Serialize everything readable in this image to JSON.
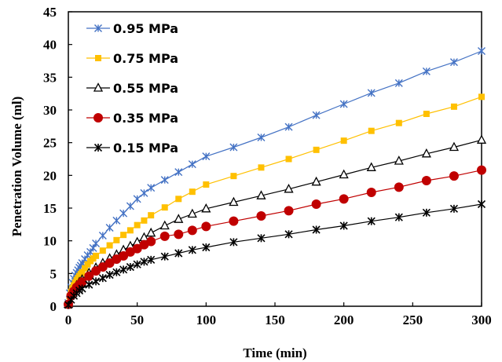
{
  "chart_data": {
    "type": "scatter",
    "xlabel": "Time (min)",
    "ylabel": "Penetration Volume (ml)",
    "xlim": [
      0,
      300
    ],
    "ylim": [
      0,
      45
    ],
    "xticks": [
      0,
      50,
      100,
      150,
      200,
      250,
      300
    ],
    "yticks": [
      0,
      5,
      10,
      15,
      20,
      25,
      30,
      35,
      40,
      45
    ],
    "grid": false,
    "legend_position": "top-left",
    "series": [
      {
        "name": "0.95 MPa",
        "color": "#4472C4",
        "marker": "asterisk",
        "x": [
          0,
          1,
          2,
          3,
          4,
          5,
          6,
          7,
          8,
          9,
          10,
          12,
          14,
          16,
          18,
          20,
          25,
          30,
          35,
          40,
          45,
          50,
          55,
          60,
          70,
          80,
          90,
          100,
          120,
          140,
          160,
          180,
          200,
          220,
          240,
          260,
          280,
          300
        ],
        "y": [
          0.5,
          2.0,
          2.9,
          3.6,
          4.2,
          4.7,
          5.1,
          5.5,
          5.9,
          6.2,
          6.6,
          7.2,
          7.8,
          8.3,
          8.9,
          9.6,
          10.8,
          12.0,
          13.1,
          14.2,
          15.3,
          16.4,
          17.3,
          18.1,
          19.3,
          20.5,
          21.7,
          22.9,
          24.3,
          25.8,
          27.4,
          29.2,
          30.9,
          32.6,
          34.1,
          35.9,
          37.3,
          39.0
        ]
      },
      {
        "name": "0.75 MPa",
        "color": "#FFC000",
        "marker": "square",
        "x": [
          0,
          1,
          2,
          3,
          4,
          5,
          6,
          7,
          8,
          9,
          10,
          12,
          14,
          16,
          18,
          20,
          25,
          30,
          35,
          40,
          45,
          50,
          55,
          60,
          70,
          80,
          90,
          100,
          120,
          140,
          160,
          180,
          200,
          220,
          240,
          260,
          280,
          300
        ],
        "y": [
          0.3,
          1.5,
          2.2,
          2.8,
          3.2,
          3.6,
          4.0,
          4.3,
          4.6,
          4.9,
          5.2,
          5.8,
          6.4,
          6.9,
          7.3,
          7.7,
          8.5,
          9.3,
          10.1,
          10.9,
          11.6,
          12.4,
          13.1,
          13.9,
          15.1,
          16.4,
          17.5,
          18.6,
          19.9,
          21.2,
          22.5,
          23.9,
          25.3,
          26.8,
          28.0,
          29.4,
          30.5,
          32.0
        ]
      },
      {
        "name": "0.55 MPa",
        "color": "#000000",
        "marker": "triangle",
        "x": [
          0,
          2,
          4,
          6,
          8,
          10,
          15,
          20,
          25,
          30,
          35,
          40,
          45,
          50,
          55,
          60,
          70,
          80,
          90,
          100,
          120,
          140,
          160,
          180,
          200,
          220,
          240,
          260,
          280,
          300
        ],
        "y": [
          0.3,
          1.8,
          2.6,
          3.2,
          3.7,
          4.1,
          5.1,
          5.9,
          6.6,
          7.3,
          7.9,
          8.6,
          9.2,
          9.8,
          10.5,
          11.2,
          12.3,
          13.3,
          14.1,
          14.9,
          15.9,
          16.9,
          17.9,
          19.0,
          20.1,
          21.2,
          22.2,
          23.3,
          24.3,
          25.4
        ]
      },
      {
        "name": "0.35 MPa",
        "color": "#C00000",
        "marker": "circle",
        "x": [
          0,
          2,
          4,
          6,
          8,
          10,
          15,
          20,
          25,
          30,
          35,
          40,
          45,
          50,
          55,
          60,
          70,
          80,
          90,
          100,
          120,
          140,
          160,
          180,
          200,
          220,
          240,
          260,
          280,
          300
        ],
        "y": [
          0.3,
          1.6,
          2.3,
          2.9,
          3.3,
          3.7,
          4.6,
          5.4,
          6.0,
          6.6,
          7.2,
          7.7,
          8.3,
          8.8,
          9.4,
          9.9,
          10.7,
          11.0,
          11.6,
          12.2,
          13.0,
          13.8,
          14.6,
          15.6,
          16.4,
          17.4,
          18.2,
          19.2,
          19.9,
          20.8
        ]
      },
      {
        "name": "0.15 MPa",
        "color": "#000000",
        "marker": "star",
        "x": [
          0,
          2,
          4,
          6,
          8,
          10,
          15,
          20,
          25,
          30,
          35,
          40,
          45,
          50,
          55,
          60,
          70,
          80,
          90,
          100,
          120,
          140,
          160,
          180,
          200,
          220,
          240,
          260,
          280,
          300
        ],
        "y": [
          0.2,
          1.0,
          1.6,
          2.0,
          2.4,
          2.7,
          3.3,
          3.8,
          4.3,
          4.8,
          5.2,
          5.6,
          6.0,
          6.4,
          6.8,
          7.1,
          7.6,
          8.1,
          8.6,
          9.0,
          9.8,
          10.4,
          11.0,
          11.7,
          12.3,
          13.0,
          13.6,
          14.3,
          14.9,
          15.6
        ]
      }
    ]
  }
}
